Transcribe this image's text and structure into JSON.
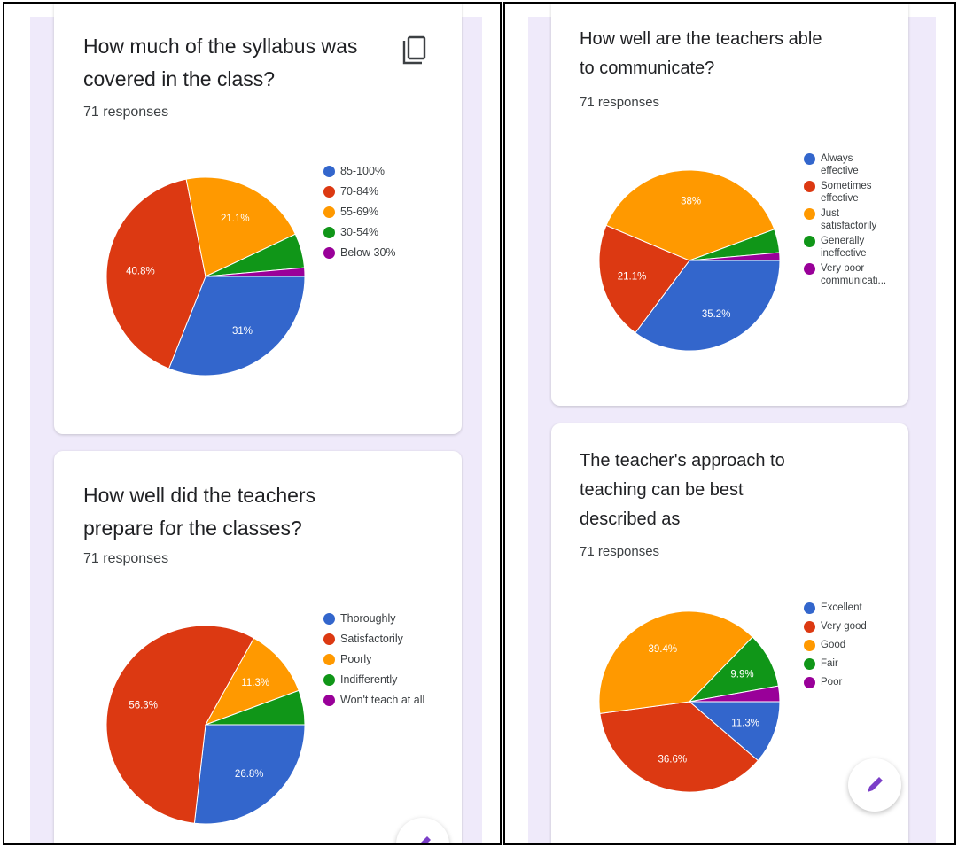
{
  "colors": {
    "blue": "#3366cc",
    "red": "#dc3912",
    "orange": "#ff9900",
    "green": "#109618",
    "purple": "#990099"
  },
  "icons": {
    "copy": "copy-icon",
    "edit": "pencil-icon"
  },
  "cards": {
    "syllabus": {
      "title": "How much of the syllabus was covered in the class?",
      "title_lines": [
        "How much of the syllabus was",
        "covered in the class?"
      ],
      "responses": "71 responses"
    },
    "preparation": {
      "title": "How well did the teachers prepare for the classes?",
      "title_lines": [
        "How well did the teachers",
        "prepare for the classes?"
      ],
      "responses": "71 responses"
    },
    "communication": {
      "title": "How well are the teachers able to communicate?",
      "title_lines": [
        "How well are the teachers able",
        "to communicate?"
      ],
      "responses": "71 responses"
    },
    "approach": {
      "title": "The teacher's approach to teaching can be best described as",
      "title_lines": [
        "The teacher's approach to",
        "teaching can be best",
        "described as"
      ],
      "responses": "71 responses"
    }
  },
  "chart_data": [
    {
      "type": "pie",
      "title": "How much of the syllabus was covered in the class?",
      "categories": [
        "85-100%",
        "70-84%",
        "55-69%",
        "30-54%",
        "Below 30%"
      ],
      "values": [
        31,
        40.8,
        21.1,
        5.6,
        1.4
      ],
      "data_labels": [
        "31%",
        "40.8%",
        "21.1%",
        "",
        ""
      ],
      "legend_position": "right"
    },
    {
      "type": "pie",
      "title": "How well did the teachers prepare for the classes?",
      "categories": [
        "Thoroughly",
        "Satisfactorily",
        "Poorly",
        "Indifferently",
        "Won't teach at all"
      ],
      "values": [
        26.8,
        56.3,
        11.3,
        5.6,
        0
      ],
      "data_labels": [
        "26.8%",
        "56.3%",
        "11.3%",
        "",
        ""
      ],
      "legend_position": "right"
    },
    {
      "type": "pie",
      "title": "How well are the teachers able to communicate?",
      "categories": [
        "Always effective",
        "Sometimes effective",
        "Just satisfactorily",
        "Generally ineffective",
        "Very poor communicati..."
      ],
      "legend_lines": [
        [
          "Always",
          "effective"
        ],
        [
          "Sometimes",
          "effective"
        ],
        [
          "Just",
          "satisfactorily"
        ],
        [
          "Generally",
          "ineffective"
        ],
        [
          "Very poor",
          "communicati..."
        ]
      ],
      "values": [
        35.2,
        21.1,
        38,
        4.2,
        1.4
      ],
      "data_labels": [
        "35.2%",
        "21.1%",
        "38%",
        "",
        ""
      ],
      "legend_position": "right"
    },
    {
      "type": "pie",
      "title": "The teacher's approach to teaching can be best described as",
      "categories": [
        "Excellent",
        "Very good",
        "Good",
        "Fair",
        "Poor"
      ],
      "values": [
        11.3,
        36.6,
        39.4,
        9.9,
        2.8
      ],
      "data_labels": [
        "11.3%",
        "36.6%",
        "39.4%",
        "9.9%",
        ""
      ],
      "legend_position": "right"
    }
  ]
}
